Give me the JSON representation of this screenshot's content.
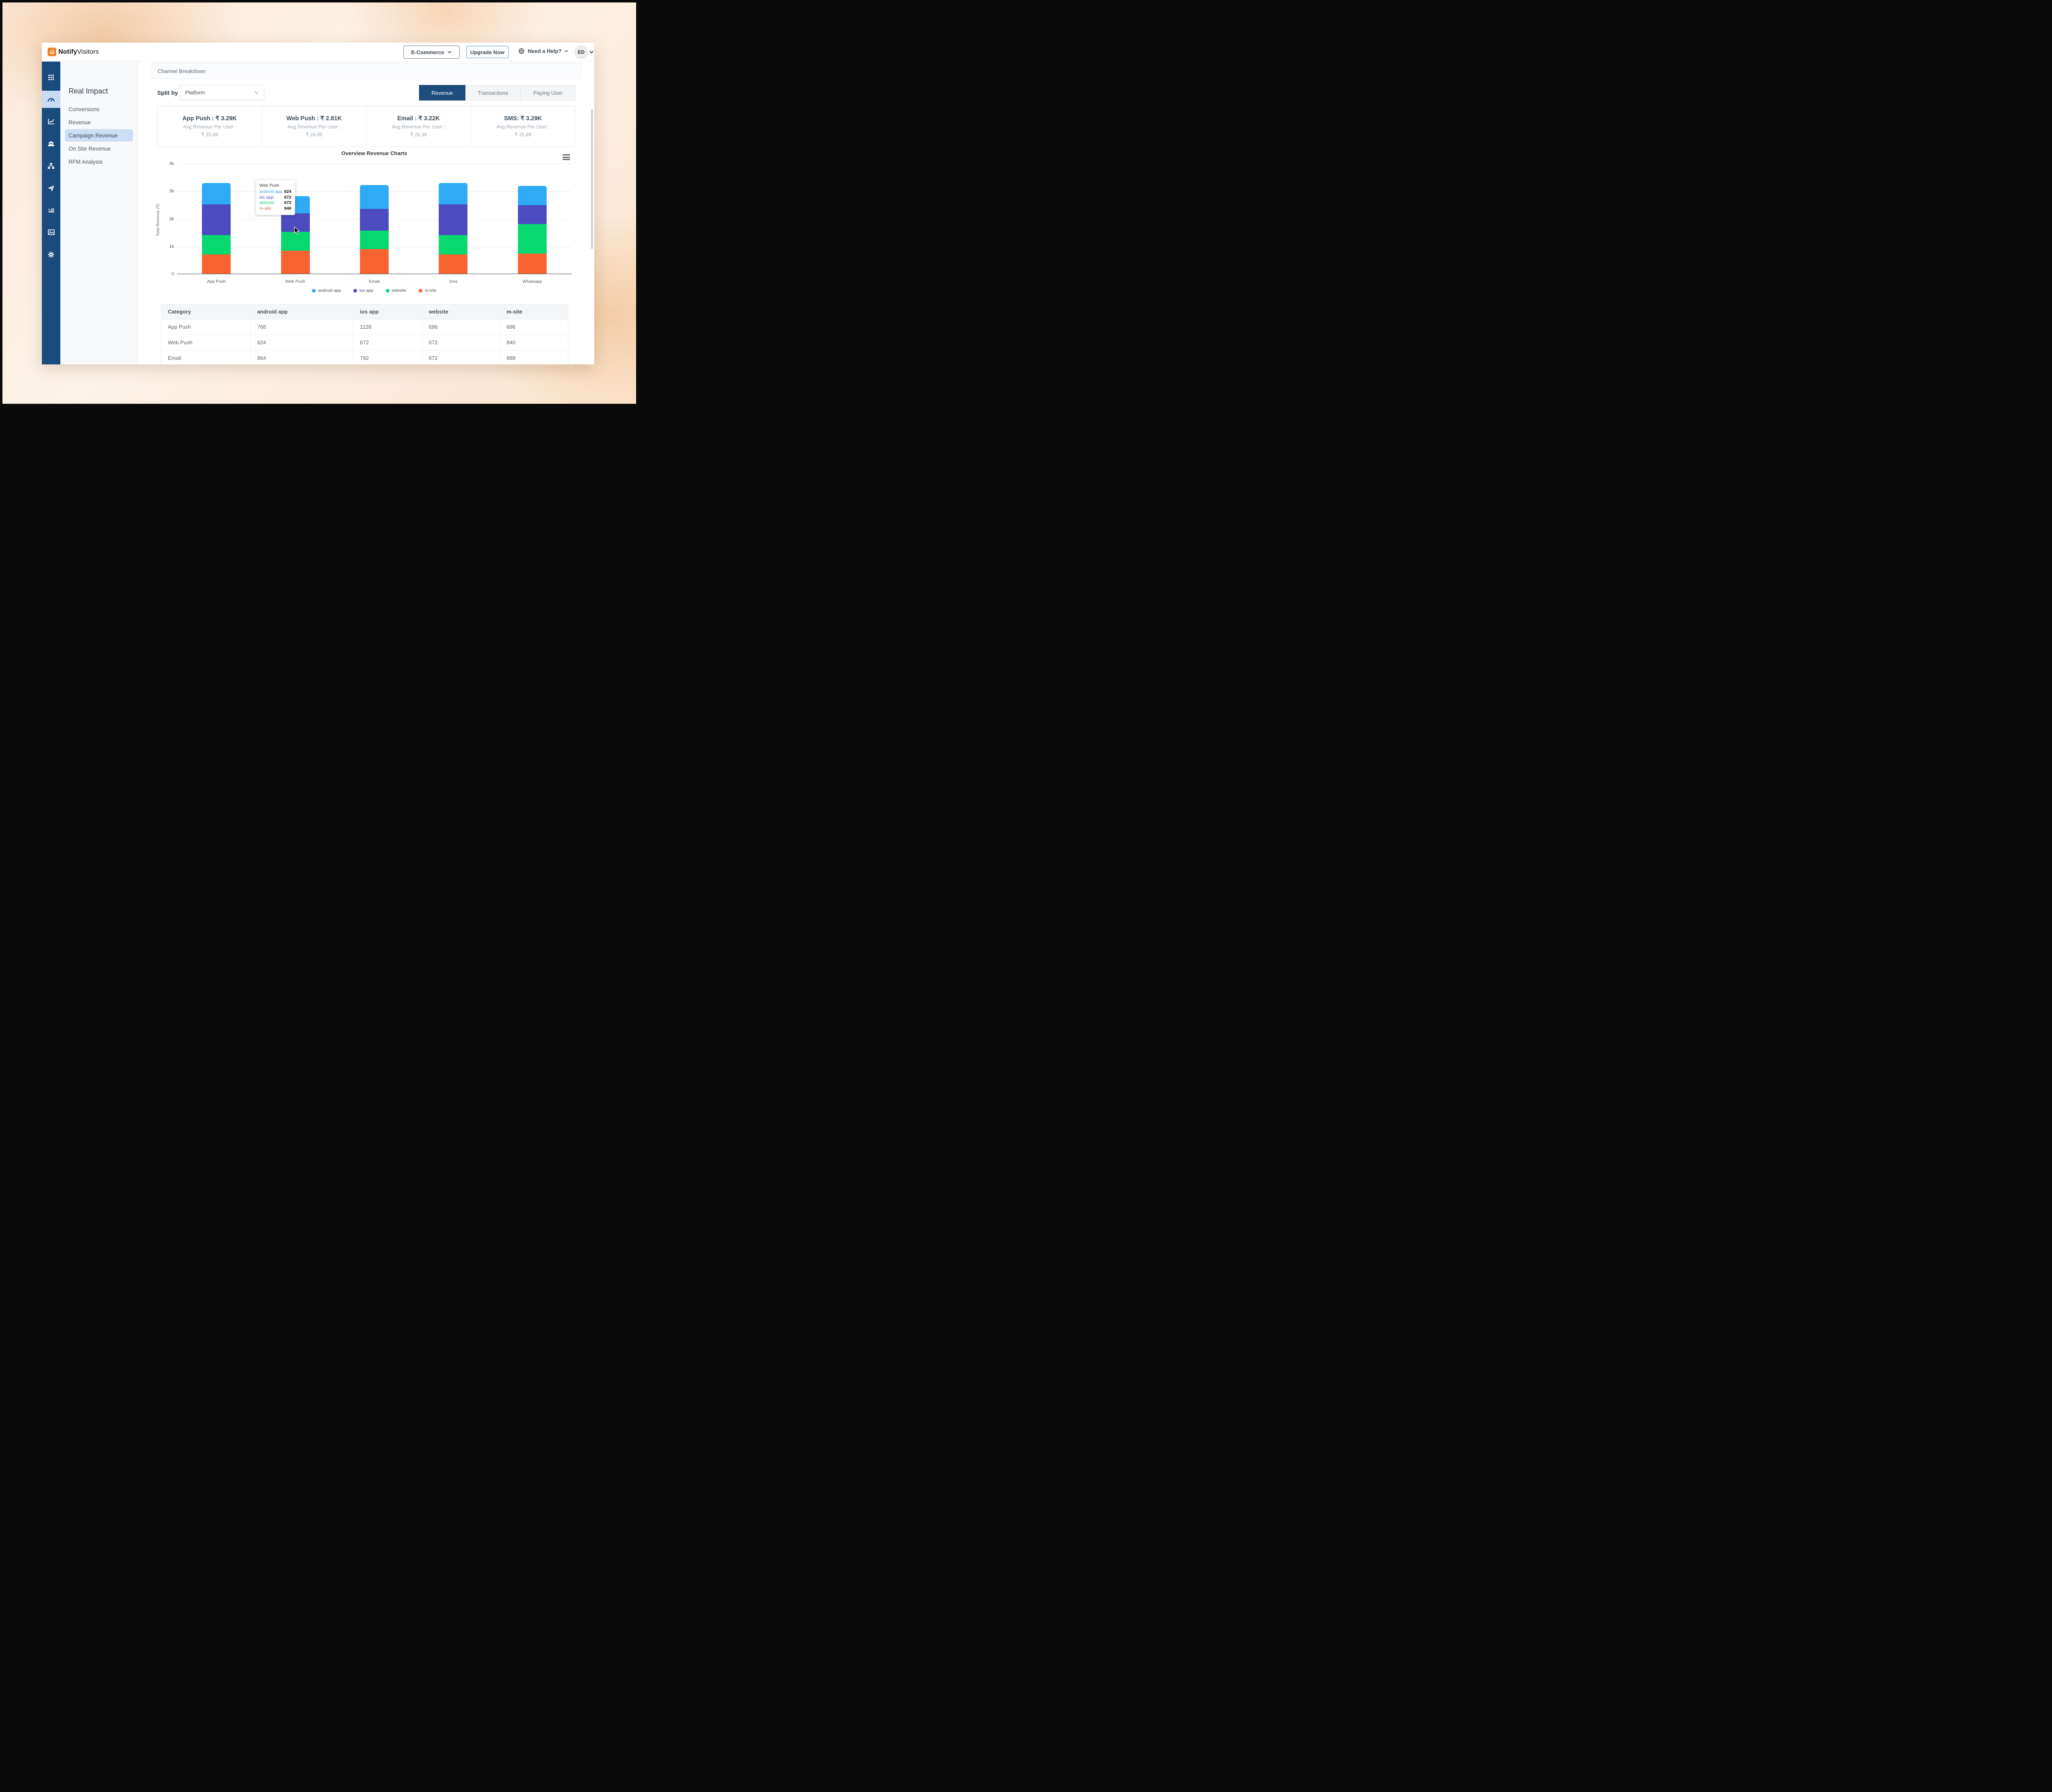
{
  "topbar": {
    "brand_bold": "Notify",
    "brand_light": "Visitors",
    "workspace_selector": "E-Commerce",
    "upgrade_label": "Upgrade Now",
    "help_label": "Need a Help?",
    "avatar_initials": "ED"
  },
  "sidebar": {
    "rail_icons": [
      "apps-grid",
      "dashboard-gauge",
      "line-chart",
      "users",
      "sitemap",
      "send",
      "list",
      "image",
      "settings"
    ],
    "active_rail_icon": "dashboard-gauge",
    "panel_title": "Real Impact",
    "items": [
      {
        "label": "Conversions",
        "active": false
      },
      {
        "label": "Revenue",
        "active": false
      },
      {
        "label": "Campaign Revenue",
        "active": true
      },
      {
        "label": "On Site Revenue",
        "active": false
      },
      {
        "label": "RFM Analysis",
        "active": false
      }
    ]
  },
  "main": {
    "section_title": "Channel Breakdown",
    "split_by_label": "Split by",
    "split_by_value": "Platform",
    "tabs": [
      {
        "label": "Revenue",
        "active": true
      },
      {
        "label": "Transactions",
        "active": false
      },
      {
        "label": "Paying User",
        "active": false
      }
    ],
    "summary_cards": [
      {
        "title": "App Push : ₹ 3.29K",
        "subtitle": "Avg Revenue Per User :",
        "value": "₹ 25.89"
      },
      {
        "title": "Web Push : ₹ 2.81K",
        "subtitle": "Avg Revenue Per User :",
        "value": "₹ 24.85"
      },
      {
        "title": "Email : ₹ 3.22K",
        "subtitle": "Avg Revenue Per User :",
        "value": "₹ 26.36"
      },
      {
        "title": "SMS: ₹ 3.29K",
        "subtitle": "Avg Revenue Per User :",
        "value": "₹ 25.89"
      }
    ]
  },
  "chart_data": {
    "type": "bar",
    "stacked": true,
    "title": "Overview Revenue Charts",
    "ylabel": "Total Revenue (₹)",
    "xlabel": "",
    "ylim": [
      0,
      4000
    ],
    "yticks": [
      "0",
      "1k",
      "2k",
      "3k",
      "4k"
    ],
    "grid": true,
    "legend_position": "bottom",
    "categories": [
      "App Push",
      "Web Push",
      "Email",
      "Sms",
      "Whatsapp"
    ],
    "series": [
      {
        "name": "android app",
        "color": "#2FABF5",
        "values": [
          768,
          624,
          864,
          768,
          704
        ]
      },
      {
        "name": "ios app",
        "color": "#4D4BC0",
        "values": [
          1128,
          672,
          792,
          1128,
          680
        ]
      },
      {
        "name": "website",
        "color": "#07D96F",
        "values": [
          696,
          672,
          672,
          696,
          1064
        ]
      },
      {
        "name": "m-site",
        "color": "#F96331",
        "values": [
          696,
          840,
          888,
          696,
          736
        ]
      }
    ],
    "stack_order_bottom_to_top": [
      "m-site",
      "website",
      "ios app",
      "android app"
    ],
    "tooltip": {
      "category": "Web Push",
      "rows": [
        {
          "label": "android app",
          "value": "624",
          "color": "#3D9BF0"
        },
        {
          "label": "ios app",
          "value": "672",
          "color": "#4D4BC0"
        },
        {
          "label": "website",
          "value": "672",
          "color": "#07D96F"
        },
        {
          "label": "m-site",
          "value": "840",
          "color": "#E8603C"
        }
      ]
    }
  },
  "table": {
    "columns": [
      "Category",
      "android app",
      "ios app",
      "website",
      "m-site"
    ],
    "rows": [
      [
        "App Push",
        "768",
        "1128",
        "696",
        "696"
      ],
      [
        "Web Push",
        "624",
        "672",
        "672",
        "840"
      ],
      [
        "Email",
        "864",
        "792",
        "672",
        "888"
      ]
    ]
  }
}
